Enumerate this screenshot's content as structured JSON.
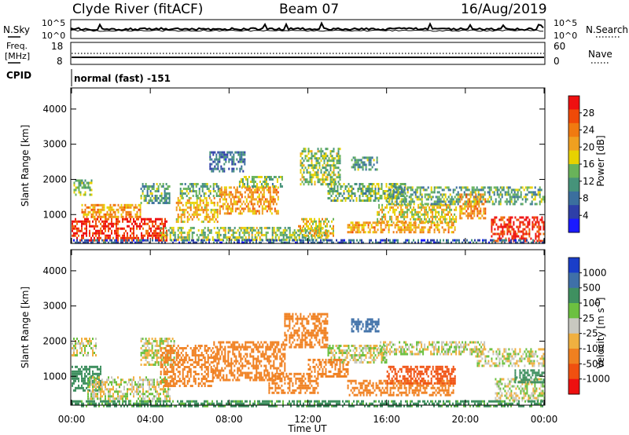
{
  "header": {
    "station": "Clyde River (fitACF)",
    "beam": "Beam 07",
    "date": "16/Aug/2019"
  },
  "nsky_panel": {
    "left_label": "N.Sky",
    "right_label": "N.Search",
    "ticks": [
      "10^5",
      "10^0"
    ],
    "right_ticks": [
      "10^5",
      "10^0"
    ]
  },
  "freq_panel": {
    "left_label_1": "Freq.",
    "left_label_2": "[MHz]",
    "left_ticks": [
      "18",
      "8"
    ],
    "right_label": "Nave",
    "right_ticks": [
      "60",
      "0"
    ]
  },
  "cpid": {
    "label": "CPID",
    "value": "normal (fast) -151"
  },
  "x_axis": {
    "label": "Time UT",
    "ticks": [
      "00:00",
      "04:00",
      "08:00",
      "12:00",
      "16:00",
      "20:00",
      "00:00"
    ]
  },
  "colors": {
    "power": [
      "#1a1aff",
      "#2e3fa8",
      "#3b6f9e",
      "#46937a",
      "#69b35a",
      "#e8d200",
      "#f0a020",
      "#f07a10",
      "#f04a08",
      "#ee1010"
    ],
    "velocity": [
      "#ee1010",
      "#f05010",
      "#f08020",
      "#f0b040",
      "#c8c8c0",
      "#6cc040",
      "#3f9060",
      "#3f70a8",
      "#1a3ec8"
    ]
  },
  "chart_data": [
    {
      "type": "heatmap",
      "panel": "power",
      "ylabel": "Slant Range [km]",
      "ylim": [
        180,
        4600
      ],
      "y_ticks": [
        "4000",
        "3000",
        "2000",
        "1000"
      ],
      "x_range_hours": [
        0,
        24
      ],
      "colorbar": {
        "label": "Power [dB]",
        "ticks": [
          "28",
          "24",
          "20",
          "16",
          "12",
          "8",
          "4"
        ],
        "range": [
          0,
          32
        ]
      },
      "regions": [
        {
          "t0": 0.0,
          "t1": 4.8,
          "r0": 250,
          "r1": 900,
          "v": 29
        },
        {
          "t0": 0.5,
          "t1": 3.5,
          "r0": 900,
          "r1": 1300,
          "v": 22
        },
        {
          "t0": 0.1,
          "t1": 1.0,
          "r0": 1550,
          "r1": 2000,
          "v": 14
        },
        {
          "t0": 3.5,
          "t1": 5.0,
          "r0": 1350,
          "r1": 1900,
          "v": 12
        },
        {
          "t0": 5.3,
          "t1": 7.4,
          "r0": 800,
          "r1": 1500,
          "v": 20
        },
        {
          "t0": 5.5,
          "t1": 7.5,
          "r0": 1500,
          "r1": 1900,
          "v": 13
        },
        {
          "t0": 7.5,
          "t1": 10.5,
          "r0": 1000,
          "r1": 1800,
          "v": 22
        },
        {
          "t0": 8.5,
          "t1": 10.7,
          "r0": 1800,
          "r1": 2100,
          "v": 14
        },
        {
          "t0": 4.5,
          "t1": 13.0,
          "r0": 250,
          "r1": 650,
          "v": 15
        },
        {
          "t0": 11.6,
          "t1": 13.6,
          "r0": 1850,
          "r1": 2900,
          "v": 15
        },
        {
          "t0": 13.0,
          "t1": 17.0,
          "r0": 1400,
          "r1": 1900,
          "v": 14
        },
        {
          "t0": 11.5,
          "t1": 13.3,
          "r0": 400,
          "r1": 900,
          "v": 19
        },
        {
          "t0": 14.0,
          "t1": 19.5,
          "r0": 500,
          "r1": 800,
          "v": 21
        },
        {
          "t0": 15.5,
          "t1": 19.5,
          "r0": 800,
          "r1": 1300,
          "v": 18
        },
        {
          "t0": 16.0,
          "t1": 24.0,
          "r0": 1300,
          "r1": 1800,
          "v": 13
        },
        {
          "t0": 19.7,
          "t1": 21.0,
          "r0": 900,
          "r1": 1600,
          "v": 22
        },
        {
          "t0": 21.3,
          "t1": 24.0,
          "r0": 250,
          "r1": 950,
          "v": 29
        },
        {
          "t0": 14.2,
          "t1": 15.6,
          "r0": 2300,
          "r1": 2650,
          "v": 12
        },
        {
          "t0": 7.0,
          "t1": 8.8,
          "r0": 2200,
          "r1": 2800,
          "v": 8
        },
        {
          "t0": 0.0,
          "t1": 24.0,
          "r0": 180,
          "r1": 300,
          "v": 7
        }
      ]
    },
    {
      "type": "heatmap",
      "panel": "velocity",
      "ylabel": "Slant Range [km]",
      "ylim": [
        180,
        4600
      ],
      "y_ticks": [
        "4000",
        "3000",
        "2000",
        "1000"
      ],
      "x_range_hours": [
        0,
        24
      ],
      "colorbar": {
        "label": "Velocity [m s^-1]",
        "ticks": [
          "1000",
          "500",
          "100",
          "25",
          "-25",
          "-100",
          "-500",
          "-1000"
        ],
        "range": [
          -1200,
          1200
        ]
      },
      "regions": [
        {
          "t0": 0.0,
          "t1": 1.5,
          "r0": 600,
          "r1": 1300,
          "v": 200
        },
        {
          "t0": 0.8,
          "t1": 5.0,
          "r0": 300,
          "r1": 1000,
          "v": 0
        },
        {
          "t0": 0.0,
          "t1": 1.2,
          "r0": 1600,
          "r1": 2100,
          "v": 0
        },
        {
          "t0": 3.5,
          "t1": 5.2,
          "r0": 1300,
          "r1": 2100,
          "v": 0
        },
        {
          "t0": 4.5,
          "t1": 7.2,
          "r0": 700,
          "r1": 1900,
          "v": -200
        },
        {
          "t0": 7.2,
          "t1": 10.8,
          "r0": 900,
          "r1": 2000,
          "v": -300
        },
        {
          "t0": 10.8,
          "t1": 13.0,
          "r0": 1800,
          "r1": 2800,
          "v": -300
        },
        {
          "t0": 13.0,
          "t1": 16.0,
          "r0": 1400,
          "r1": 1900,
          "v": 0
        },
        {
          "t0": 12.0,
          "t1": 14.0,
          "r0": 1000,
          "r1": 1500,
          "v": -300
        },
        {
          "t0": 10.0,
          "t1": 12.5,
          "r0": 500,
          "r1": 1100,
          "v": -300
        },
        {
          "t0": 14.0,
          "t1": 19.5,
          "r0": 450,
          "r1": 900,
          "v": -400
        },
        {
          "t0": 16.0,
          "t1": 19.5,
          "r0": 800,
          "r1": 1300,
          "v": -600
        },
        {
          "t0": 15.5,
          "t1": 21.0,
          "r0": 1600,
          "r1": 2000,
          "v": 0
        },
        {
          "t0": 20.5,
          "t1": 24.0,
          "r0": 1300,
          "r1": 1800,
          "v": 0
        },
        {
          "t0": 21.5,
          "t1": 24.0,
          "r0": 300,
          "r1": 950,
          "v": 0
        },
        {
          "t0": 22.5,
          "t1": 24.0,
          "r0": 800,
          "r1": 1200,
          "v": 200
        },
        {
          "t0": 14.2,
          "t1": 15.6,
          "r0": 2300,
          "r1": 2650,
          "v": 600
        },
        {
          "t0": 0.0,
          "t1": 24.0,
          "r0": 180,
          "r1": 320,
          "v": 150
        }
      ]
    }
  ]
}
